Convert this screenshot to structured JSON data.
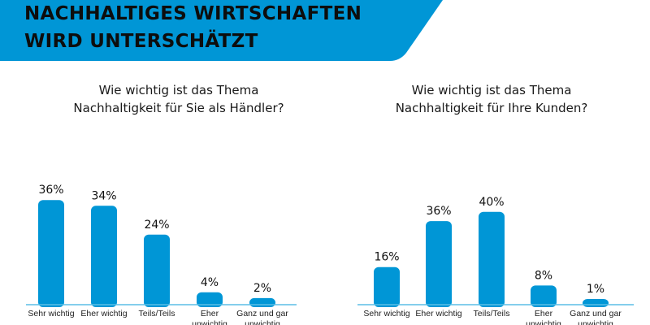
{
  "header": {
    "title_lines": [
      "NACHHALTIGES WIRTSCHAFTEN",
      "WIRD UNTERSCHÄTZT"
    ]
  },
  "colors": {
    "accent": "#0096d6",
    "bar": "#0096d6",
    "baseline": "#5bbde6"
  },
  "chart_data": [
    {
      "type": "bar",
      "title": "Wie wichtig ist das Thema Nachhaltigkeit für Sie als Händler?",
      "title_lines": [
        "Wie wichtig ist das Thema",
        "Nachhaltigkeit für Sie als Händler?"
      ],
      "categories": [
        [
          "Sehr wichtig"
        ],
        [
          "Eher wichtig"
        ],
        [
          "Teils/Teils"
        ],
        [
          "Eher",
          "unwichtig"
        ],
        [
          "Ganz und gar",
          "unwichtig"
        ]
      ],
      "values": [
        36,
        34,
        24,
        4,
        2
      ],
      "labels": [
        "36%",
        "34%",
        "24%",
        "4%",
        "2%"
      ],
      "unit": "%",
      "grid": false
    },
    {
      "type": "bar",
      "title": "Wie wichtig ist das Thema Nachhaltigkeit für Ihre Kunden?",
      "title_lines": [
        "Wie wichtig ist das Thema",
        "Nachhaltigkeit für Ihre Kunden?"
      ],
      "categories": [
        [
          "Sehr wichtig"
        ],
        [
          "Eher wichtig"
        ],
        [
          "Teils/Teils"
        ],
        [
          "Eher",
          "unwichtig"
        ],
        [
          "Ganz und gar",
          "unwichtig"
        ]
      ],
      "values": [
        16,
        36,
        40,
        8,
        1
      ],
      "labels": [
        "16%",
        "36%",
        "40%",
        "8%",
        "1%"
      ],
      "unit": "%",
      "grid": false
    }
  ]
}
